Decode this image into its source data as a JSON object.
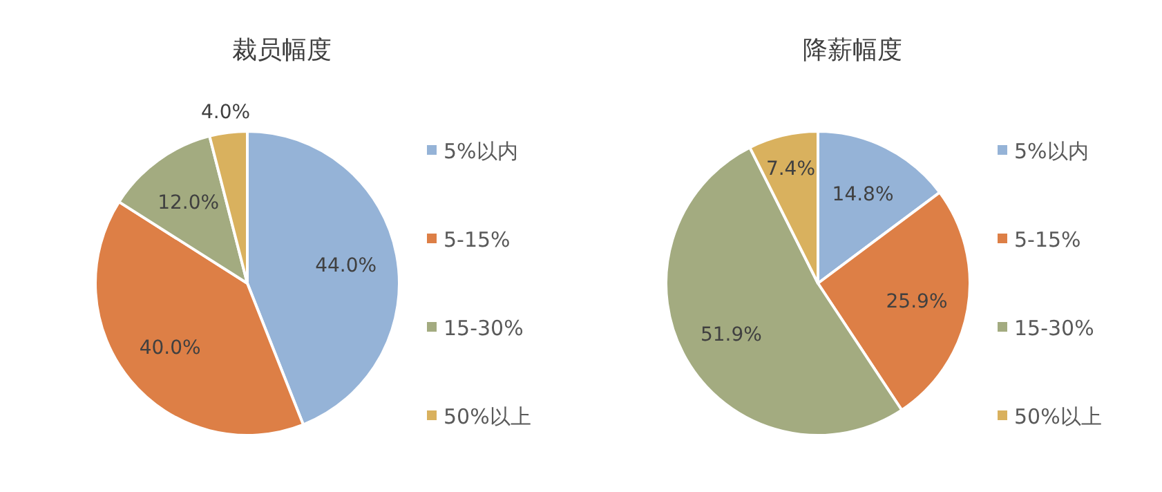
{
  "chart_data": [
    {
      "type": "pie",
      "title": "裁员幅度",
      "categories": [
        "5%以内",
        "5-15%",
        "15-30%",
        "50%以上"
      ],
      "values": [
        44.0,
        40.0,
        12.0,
        4.0
      ],
      "value_labels": [
        "44.0%",
        "40.0%",
        "12.0%",
        "4.0%"
      ],
      "colors": [
        "#95b3d7",
        "#dd7f46",
        "#a3ab80",
        "#d9b15e"
      ],
      "legend": "right"
    },
    {
      "type": "pie",
      "title": "降薪幅度",
      "categories": [
        "5%以内",
        "5-15%",
        "15-30%",
        "50%以上"
      ],
      "values": [
        14.8,
        25.9,
        51.9,
        7.4
      ],
      "value_labels": [
        "14.8%",
        "25.9%",
        "51.9%",
        "7.4%"
      ],
      "colors": [
        "#95b3d7",
        "#dd7f46",
        "#a3ab80",
        "#d9b15e"
      ],
      "legend": "right"
    }
  ]
}
